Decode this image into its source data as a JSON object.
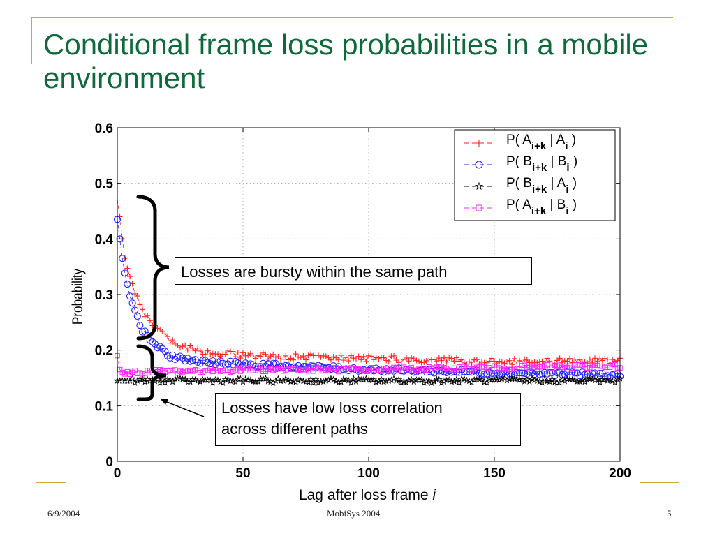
{
  "slide": {
    "title": "Conditional frame loss probabilities in a mobile environment",
    "footer_left": "6/9/2004",
    "footer_center": "MobiSys 2004",
    "footer_right": "5",
    "accent_color": "#d4a82e",
    "title_color": "#0e6a3a"
  },
  "annotations": {
    "bursty": "Losses are bursty within the same path",
    "low_corr_line1": "Losses have low loss correlation",
    "low_corr_line2": "across different paths"
  },
  "chart_data": {
    "type": "line",
    "title": "",
    "xlabel": "Lag after loss frame",
    "xlabel_italic": "i",
    "ylabel": "Probability",
    "xlim": [
      0,
      200
    ],
    "ylim": [
      0,
      0.6
    ],
    "x_ticks": [
      0,
      50,
      100,
      150,
      200
    ],
    "y_ticks": [
      0,
      0.1,
      0.2,
      0.3,
      0.4,
      0.5,
      0.6
    ],
    "grid": true,
    "legend_position": "top-right",
    "series": [
      {
        "label": {
          "pre": "P( A",
          "sub1": "i+k",
          "mid": " | A",
          "sub2": "i",
          "post": " )"
        },
        "color": "#ff2020",
        "marker": "plus",
        "model": {
          "asym": 0.18,
          "amp": 0.29,
          "tau": 8
        },
        "x": [
          0,
          1,
          2,
          3,
          5,
          10,
          20,
          30,
          50,
          100,
          150,
          200
        ],
        "y": [
          0.47,
          0.44,
          0.4,
          0.37,
          0.33,
          0.27,
          0.22,
          0.2,
          0.19,
          0.185,
          0.18,
          0.18
        ]
      },
      {
        "label": {
          "pre": "P( B",
          "sub1": "i+k",
          "mid": " | B",
          "sub2": "i",
          "post": " )"
        },
        "color": "#2020ff",
        "marker": "circle",
        "model": {
          "asym": 0.165,
          "amp": 0.27,
          "tau": 6
        },
        "x": [
          0,
          1,
          2,
          3,
          5,
          10,
          20,
          30,
          50,
          100,
          150,
          200
        ],
        "y": [
          0.435,
          0.4,
          0.365,
          0.335,
          0.3,
          0.235,
          0.19,
          0.18,
          0.175,
          0.165,
          0.16,
          0.155
        ]
      },
      {
        "label": {
          "pre": "P( B",
          "sub1": "i+k",
          "mid": " | A",
          "sub2": "i",
          "post": " )"
        },
        "color": "#000000",
        "marker": "star",
        "model": {
          "asym": 0.145,
          "amp": 0.0,
          "tau": 1
        },
        "x": [
          0,
          50,
          100,
          150,
          200
        ],
        "y": [
          0.145,
          0.145,
          0.145,
          0.145,
          0.145
        ]
      },
      {
        "label": {
          "pre": "P( A",
          "sub1": "i+k",
          "mid": " | B",
          "sub2": "i",
          "post": " )"
        },
        "color": "#ff20ff",
        "marker": "square",
        "model": {
          "asym": 0.165,
          "amp": 0.0,
          "tau": 1
        },
        "x": [
          0,
          1,
          2,
          50,
          100,
          150,
          200
        ],
        "y": [
          0.19,
          0.165,
          0.16,
          0.165,
          0.165,
          0.168,
          0.172
        ]
      }
    ]
  }
}
